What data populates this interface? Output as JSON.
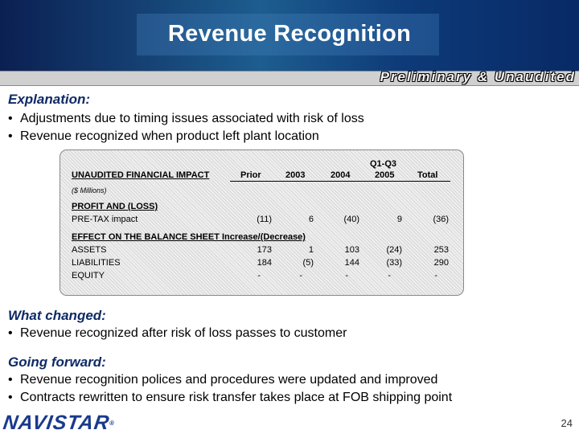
{
  "header": {
    "title": "Revenue Recognition",
    "banner": "Preliminary & Unaudited"
  },
  "explanation": {
    "heading": "Explanation:",
    "bullets": [
      "Adjustments due to timing issues associated with risk of loss",
      "Revenue recognized when product left plant location"
    ]
  },
  "table": {
    "period_label": "Q1-Q3",
    "title": "UNAUDITED FINANCIAL IMPACT",
    "units": "($ Millions)",
    "columns": [
      "Prior",
      "2003",
      "2004",
      "2005",
      "Total"
    ],
    "section1": "PROFIT AND (LOSS)",
    "section1_rows": [
      {
        "label": "PRE-TAX impact",
        "values": [
          "(11)",
          "6",
          "(40)",
          "9",
          "(36)"
        ]
      }
    ],
    "section2": "EFFECT ON THE BALANCE SHEET Increase/(Decrease)",
    "section2_rows": [
      {
        "label": "ASSETS",
        "values": [
          "173",
          "1",
          "103",
          "(24)",
          "253"
        ]
      },
      {
        "label": "LIABILITIES",
        "values": [
          "184",
          "(5)",
          "144",
          "(33)",
          "290"
        ]
      },
      {
        "label": "EQUITY",
        "values": [
          "-",
          "-",
          "-",
          "-",
          "-"
        ]
      }
    ]
  },
  "what_changed": {
    "heading": "What changed:",
    "bullets": [
      "Revenue recognized after risk of loss passes to customer"
    ]
  },
  "going_forward": {
    "heading": "Going forward:",
    "bullets": [
      "Revenue recognition polices and procedures were updated and improved",
      "Contracts rewritten to ensure risk transfer takes place at FOB shipping point"
    ]
  },
  "footer": {
    "logo": "NAVISTAR",
    "logo_mark": "®",
    "page_number": "24"
  },
  "colors": {
    "heading": "#0e2a66",
    "header_dark": "#0b1f52",
    "header_mid": "#1d5d8f",
    "logo": "#1a3a8c"
  }
}
